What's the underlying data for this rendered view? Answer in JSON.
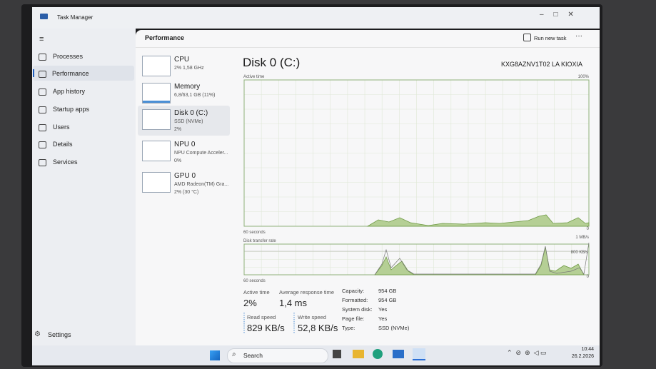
{
  "window": {
    "title": "Task Manager"
  },
  "sidebar": {
    "items": [
      "Processes",
      "Performance",
      "App history",
      "Startup apps",
      "Users",
      "Details",
      "Services"
    ],
    "settings": "Settings"
  },
  "header": {
    "title": "Performance",
    "action": "Run new task"
  },
  "devices": [
    {
      "name": "CPU",
      "lines": [
        "2% 1,58 GHz"
      ]
    },
    {
      "name": "Memory",
      "lines": [
        "6,8/63,1 GB (11%)"
      ]
    },
    {
      "name": "Disk 0 (C:)",
      "lines": [
        "SSD (NVMe)",
        "2%"
      ]
    },
    {
      "name": "NPU 0",
      "lines": [
        "NPU Compute Acceler...",
        "0%"
      ]
    },
    {
      "name": "GPU 0",
      "lines": [
        "AMD Radeon(TM) Gra...",
        "2% (30 °C)"
      ]
    }
  ],
  "detail": {
    "title": "Disk 0 (C:)",
    "model": "KXG8AZNV1T02 LA KIOXIA",
    "graph1": {
      "label": "Active time",
      "max": "100%",
      "time": "60 seconds",
      "min": "0"
    },
    "graph2": {
      "label": "Disk transfer rate",
      "max": "1 MB/s",
      "marker": "800 KB/s",
      "time": "60 seconds",
      "min": "0"
    },
    "stats": [
      {
        "label": "Active time",
        "value": "2%"
      },
      {
        "label": "Average response time",
        "value": "1,4 ms"
      },
      {
        "label": "Read speed",
        "value": "829 KB/s"
      },
      {
        "label": "Write speed",
        "value": "52,8 KB/s"
      }
    ],
    "properties": [
      [
        "Capacity:",
        "954 GB"
      ],
      [
        "Formatted:",
        "954 GB"
      ],
      [
        "System disk:",
        "Yes"
      ],
      [
        "Page file:",
        "Yes"
      ],
      [
        "Type:",
        "SSD (NVMe)"
      ]
    ]
  },
  "taskbar": {
    "search": "Search",
    "time": "10:44",
    "date": "26.2.2026"
  }
}
